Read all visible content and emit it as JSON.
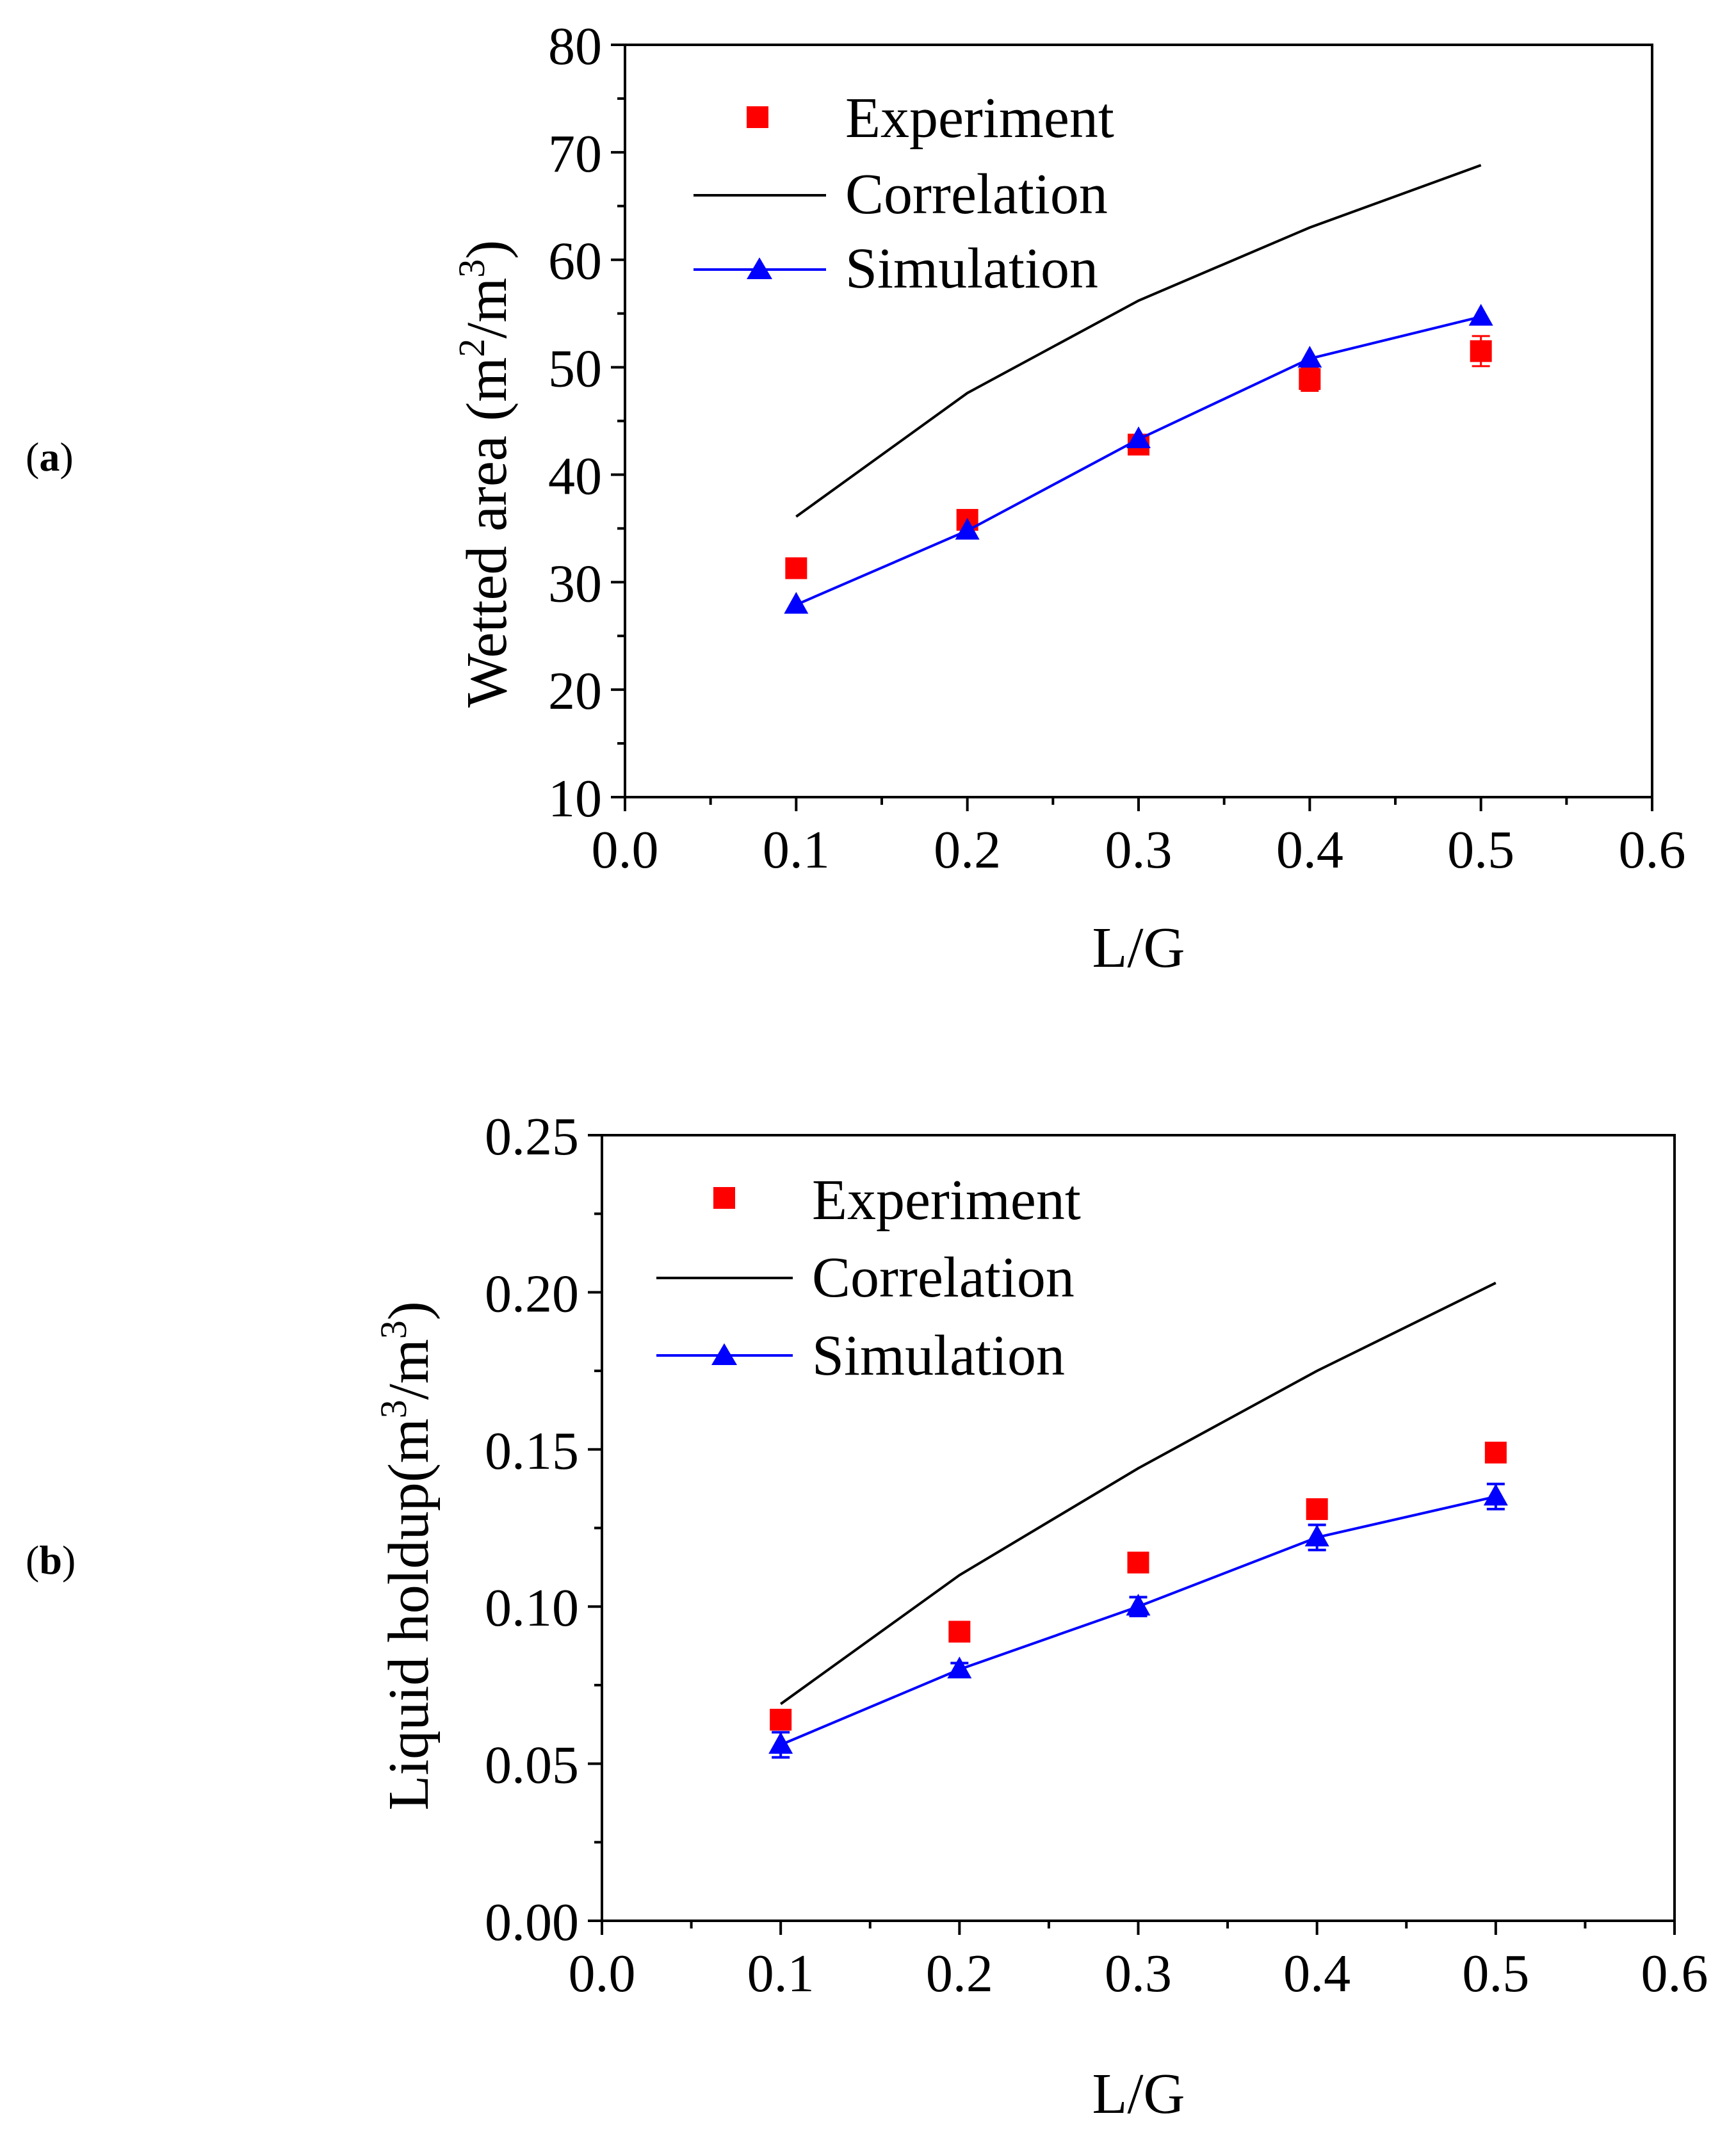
{
  "colors": {
    "experiment": "#ff0000",
    "correlation": "#000000",
    "simulation": "#0000ff",
    "axis": "#000000"
  },
  "chart_data": [
    {
      "panel_label": "(a)",
      "panel_letter": "a",
      "type": "line",
      "xlabel": "L/G",
      "ylabel_main": "Wetted area (m",
      "ylabel_sup1": "2",
      "ylabel_mid": "/m",
      "ylabel_sup2": "3",
      "ylabel_end": ")",
      "xlim": [
        0.0,
        0.6
      ],
      "ylim": [
        10,
        80
      ],
      "xticks": [
        0.0,
        0.1,
        0.2,
        0.3,
        0.4,
        0.5,
        0.6
      ],
      "xtick_labels": [
        "0.0",
        "0.1",
        "0.2",
        "0.3",
        "0.4",
        "0.5",
        "0.6"
      ],
      "yticks": [
        10,
        20,
        30,
        40,
        50,
        60,
        70,
        80
      ],
      "ytick_labels": [
        "10",
        "20",
        "30",
        "40",
        "50",
        "60",
        "70",
        "80"
      ],
      "legend_position": "top-left",
      "series": [
        {
          "name": "Experiment",
          "kind": "markers-square",
          "x": [
            0.1,
            0.2,
            0.3,
            0.4,
            0.5
          ],
          "values": [
            31.3,
            35.8,
            42.8,
            48.9,
            51.5
          ],
          "err": [
            0.4,
            0.6,
            0.7,
            1.1,
            1.4
          ]
        },
        {
          "name": "Correlation",
          "kind": "line",
          "x": [
            0.1,
            0.2,
            0.3,
            0.4,
            0.5
          ],
          "values": [
            36.1,
            47.6,
            56.2,
            63.0,
            68.8
          ]
        },
        {
          "name": "Simulation",
          "kind": "line-triangle",
          "x": [
            0.1,
            0.2,
            0.3,
            0.4,
            0.5
          ],
          "values": [
            27.9,
            34.8,
            43.3,
            50.8,
            54.7
          ],
          "err": [
            0,
            0,
            0,
            0,
            0
          ]
        }
      ]
    },
    {
      "panel_label": "(b)",
      "panel_letter": "b",
      "type": "line",
      "xlabel": "L/G",
      "ylabel_main": "Liquid holdup(m",
      "ylabel_sup1": "3",
      "ylabel_mid": "/m",
      "ylabel_sup2": "3",
      "ylabel_end": ")",
      "xlim": [
        0.0,
        0.6
      ],
      "ylim": [
        0.0,
        0.25
      ],
      "xticks": [
        0.0,
        0.1,
        0.2,
        0.3,
        0.4,
        0.5,
        0.6
      ],
      "xtick_labels": [
        "0.0",
        "0.1",
        "0.2",
        "0.3",
        "0.4",
        "0.5",
        "0.6"
      ],
      "yticks": [
        0.0,
        0.05,
        0.1,
        0.15,
        0.2,
        0.25
      ],
      "ytick_labels": [
        "0.00",
        "0.05",
        "0.10",
        "0.15",
        "0.20",
        "0.25"
      ],
      "legend_position": "top-left",
      "series": [
        {
          "name": "Experiment",
          "kind": "markers-square",
          "x": [
            0.1,
            0.2,
            0.3,
            0.4,
            0.5
          ],
          "values": [
            0.064,
            0.092,
            0.114,
            0.131,
            0.149
          ],
          "err": [
            0.002,
            0.002,
            0.002,
            0.002,
            0.003
          ]
        },
        {
          "name": "Correlation",
          "kind": "line",
          "x": [
            0.1,
            0.2,
            0.3,
            0.4,
            0.5
          ],
          "values": [
            0.069,
            0.11,
            0.144,
            0.175,
            0.203
          ]
        },
        {
          "name": "Simulation",
          "kind": "line-triangle",
          "x": [
            0.1,
            0.2,
            0.3,
            0.4,
            0.5
          ],
          "values": [
            0.056,
            0.08,
            0.1,
            0.122,
            0.135
          ],
          "err": [
            0.004,
            0.002,
            0.003,
            0.004,
            0.004
          ]
        }
      ]
    }
  ]
}
